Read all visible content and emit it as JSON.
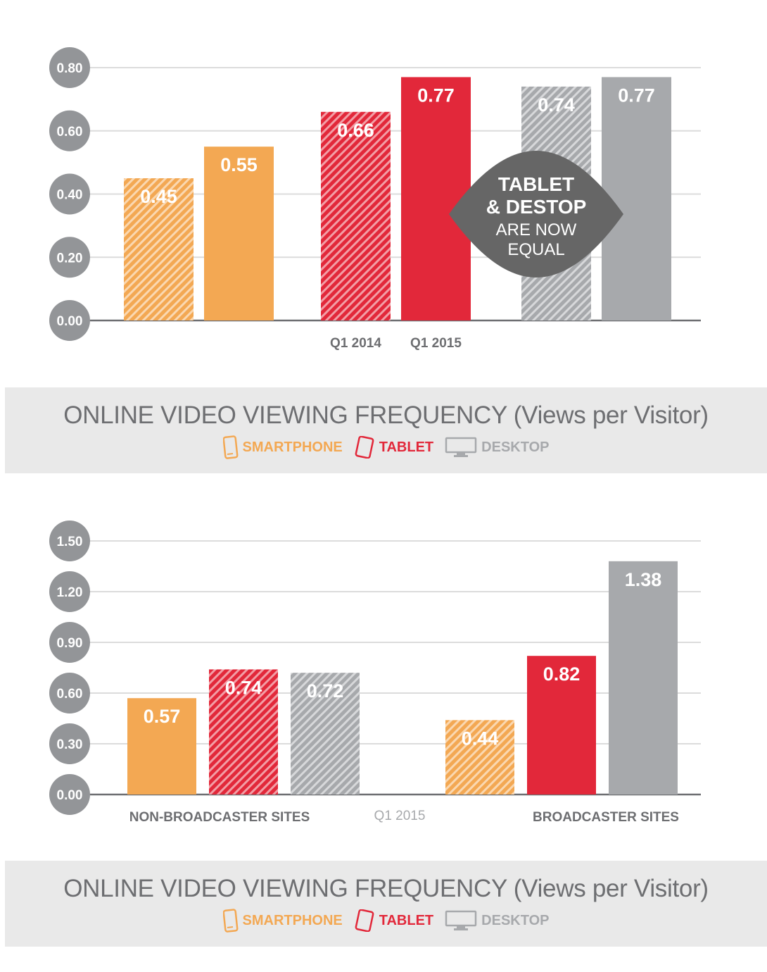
{
  "colors": {
    "smartphone": "#f3a853",
    "tablet": "#e2283a",
    "desktop": "#a7a9ac",
    "axis_badge": "#939598",
    "callout": "#666666",
    "band": "#e9e9e9",
    "title_text": "#6d6e71"
  },
  "legend": {
    "smartphone": "SMARTPHONE",
    "tablet": "TABLET",
    "desktop": "DESKTOP",
    "smartphone_icon": "smartphone-icon",
    "tablet_icon": "tablet-icon",
    "desktop_icon": "desktop-icon"
  },
  "captions": {
    "chart1_title": "ONLINE VIDEO VIEWING FREQUENCY (Views per Visitor)",
    "chart2_title": "ONLINE VIDEO VIEWING FREQUENCY (Views per Visitor)"
  },
  "chart_data": [
    {
      "type": "bar",
      "title": "ONLINE VIDEO VIEWING FREQUENCY (Views per Visitor)",
      "ylim": [
        0,
        0.8
      ],
      "y_ticks": [
        "0.00",
        "0.20",
        "0.40",
        "0.60",
        "0.80"
      ],
      "grid": true,
      "x_labels": [
        "Q1 2014",
        "Q1 2015"
      ],
      "groups": [
        {
          "series": "SMARTPHONE",
          "bars": [
            {
              "period": "Q1 2014",
              "value": 0.45,
              "label": "0.45",
              "hatched": true
            },
            {
              "period": "Q1 2015",
              "value": 0.55,
              "label": "0.55",
              "hatched": false
            }
          ]
        },
        {
          "series": "TABLET",
          "bars": [
            {
              "period": "Q1 2014",
              "value": 0.66,
              "label": "0.66",
              "hatched": true
            },
            {
              "period": "Q1 2015",
              "value": 0.77,
              "label": "0.77",
              "hatched": false
            }
          ]
        },
        {
          "series": "DESKTOP",
          "bars": [
            {
              "period": "Q1 2014",
              "value": 0.74,
              "label": "0.74",
              "hatched": true
            },
            {
              "period": "Q1 2015",
              "value": 0.77,
              "label": "0.77",
              "hatched": false
            }
          ]
        }
      ],
      "annotation": {
        "line1": "TABLET",
        "line2": "& DESTOP",
        "line3": "ARE NOW",
        "line4": "EQUAL"
      }
    },
    {
      "type": "bar",
      "title": "ONLINE VIDEO VIEWING FREQUENCY (Views per Visitor)",
      "ylim": [
        0,
        1.5
      ],
      "y_ticks": [
        "0.00",
        "0.30",
        "0.60",
        "0.90",
        "1.20",
        "1.50"
      ],
      "grid": true,
      "period_label": "Q1 2015",
      "categories": [
        "NON-BROADCASTER SITES",
        "BROADCASTER SITES"
      ],
      "groups": [
        {
          "category": "NON-BROADCASTER SITES",
          "bars": [
            {
              "series": "SMARTPHONE",
              "value": 0.57,
              "label": "0.57",
              "hatched": false
            },
            {
              "series": "TABLET",
              "value": 0.74,
              "label": "0.74",
              "hatched": true
            },
            {
              "series": "DESKTOP",
              "value": 0.72,
              "label": "0.72",
              "hatched": true
            }
          ]
        },
        {
          "category": "BROADCASTER SITES",
          "bars": [
            {
              "series": "SMARTPHONE",
              "value": 0.44,
              "label": "0.44",
              "hatched": true
            },
            {
              "series": "TABLET",
              "value": 0.82,
              "label": "0.82",
              "hatched": false
            },
            {
              "series": "DESKTOP",
              "value": 1.38,
              "label": "1.38",
              "hatched": false
            }
          ]
        }
      ]
    }
  ]
}
